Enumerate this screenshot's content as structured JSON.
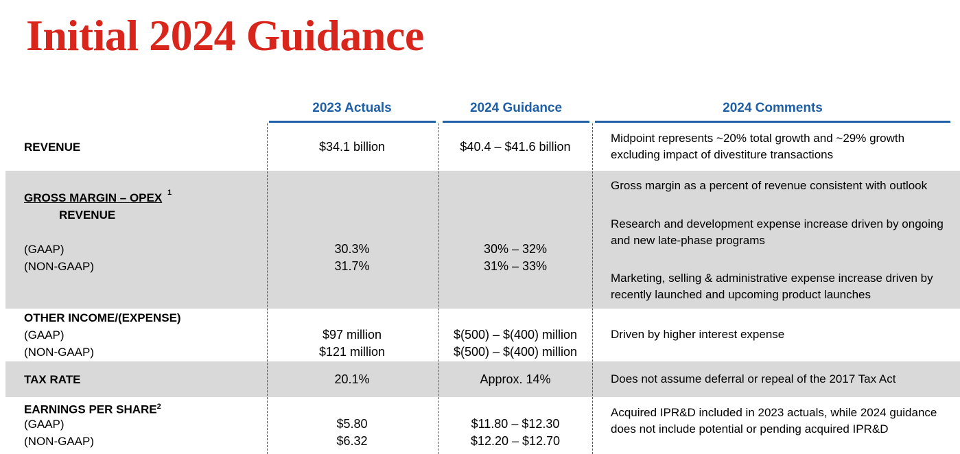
{
  "title": "Initial 2024 Guidance",
  "columns": {
    "actuals": "2023 Actuals",
    "guidance": "2024 Guidance",
    "comments": "2024 Comments"
  },
  "revenue": {
    "label": "REVENUE",
    "actual": "$34.1 billion",
    "guidance": "$40.4 – $41.6 billion",
    "comment": "Midpoint represents ~20% total growth and ~29% growth excluding impact of divestiture transactions"
  },
  "gross_margin": {
    "label": "GROSS MARGIN – OPEX",
    "footnote": "1",
    "sub_label": "REVENUE",
    "gaap_label": "(GAAP)",
    "nongaap_label": "(NON-GAAP)",
    "actual_gaap": "30.3%",
    "actual_nongaap": "31.7%",
    "guidance_gaap": "30% – 32%",
    "guidance_nongaap": "31% – 33%",
    "comments": [
      "Gross margin as a percent of revenue consistent with outlook",
      "Research and development expense increase driven by ongoing and new late-phase programs",
      "Marketing, selling & administrative expense increase driven by recently launched and upcoming product launches"
    ]
  },
  "other_income": {
    "label": "OTHER INCOME/(EXPENSE)",
    "gaap_label": "(GAAP)",
    "nongaap_label": "(NON-GAAP)",
    "actual_gaap": "$97 million",
    "actual_nongaap": "$121 million",
    "guidance_gaap": "$(500) – $(400) million",
    "guidance_nongaap": "$(500) – $(400) million",
    "comment": "Driven by higher interest expense"
  },
  "tax_rate": {
    "label": "TAX RATE",
    "actual": "20.1%",
    "guidance": "Approx. 14%",
    "comment": "Does not assume deferral or repeal of the 2017 Tax Act"
  },
  "eps": {
    "label": "EARNINGS PER SHARE",
    "footnote": "2",
    "gaap_label": "(GAAP)",
    "nongaap_label": "(NON-GAAP)",
    "actual_gaap": "$5.80",
    "actual_nongaap": "$6.32",
    "guidance_gaap": "$11.80 – $12.30",
    "guidance_nongaap": "$12.20 – $12.70",
    "comment": "Acquired IPR&D included in 2023 actuals, while 2024 guidance does not include potential or pending acquired IPR&D"
  }
}
